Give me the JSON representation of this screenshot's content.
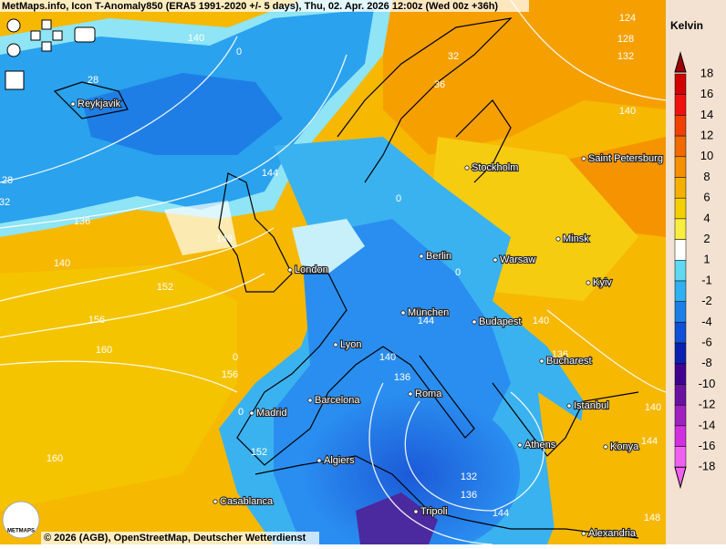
{
  "header": {
    "title": "MetMaps.info, Icon T-Anomaly850 (ERA5 1991-2020 +/- 5 days), Thu, 02. Apr. 2026 12:00z (Wed 00z +36h)"
  },
  "legend": {
    "unit": "Kelvin",
    "labels": [
      "18",
      "16",
      "14",
      "12",
      "10",
      "8",
      "6",
      "4",
      "2",
      "1",
      "-1",
      "-2",
      "-4",
      "-6",
      "-8",
      "-10",
      "-12",
      "-14",
      "-16",
      "-18"
    ]
  },
  "cities": [
    "Reykjavik",
    "London",
    "Berlin",
    "Warsaw",
    "Minsk",
    "Kyiv",
    "Stockholm",
    "Saint Petersburg",
    "München",
    "Budapest",
    "Lyon",
    "Bucharest",
    "Barcelona",
    "Madrid",
    "Roma",
    "Istanbul",
    "Athens",
    "Konya",
    "Algiers",
    "Casablanca",
    "Tripoli",
    "Alexandria"
  ],
  "contour_labels": [
    "140",
    "124",
    "128",
    "132",
    "140",
    "36",
    "32",
    "28",
    "28",
    "32",
    "136",
    "140",
    "144",
    "148",
    "152",
    "156",
    "160",
    "156",
    "160",
    "152",
    "144",
    "140",
    "136",
    "132",
    "136",
    "144",
    "140",
    "136",
    "140",
    "144",
    "148",
    "0",
    "0",
    "0",
    "0",
    "0"
  ],
  "footer": {
    "credit": "© 2026 (AGB), OpenStreetMap, Deutscher Wetterdienst"
  },
  "logo": {
    "text": "METMAPS"
  }
}
